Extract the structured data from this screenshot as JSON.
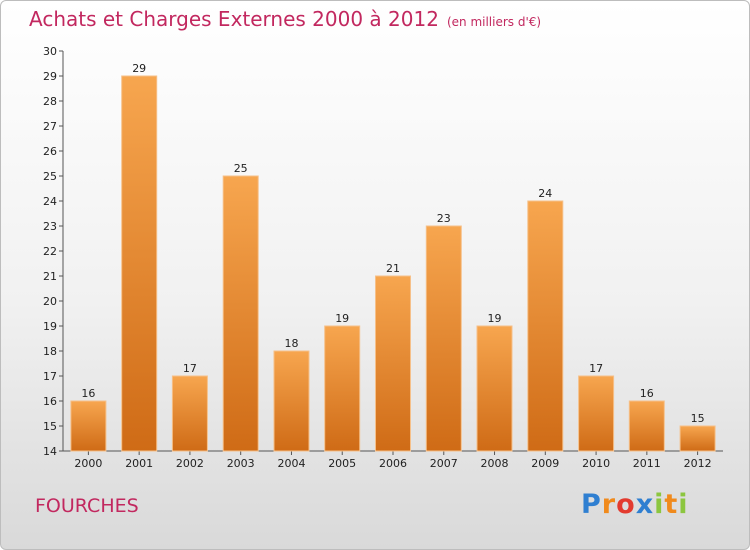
{
  "header": {
    "title": "Achats et Charges Externes 2000 à 2012",
    "unit": "(en milliers d'€)"
  },
  "footer": {
    "town": "FOURCHES",
    "logo_letters": [
      {
        "ch": "P",
        "color": "#2f7fd1"
      },
      {
        "ch": "r",
        "color": "#f08a1c"
      },
      {
        "ch": "o",
        "color": "#e33b2f"
      },
      {
        "ch": "x",
        "color": "#2f7fd1"
      },
      {
        "ch": "i",
        "color": "#8cc63f"
      },
      {
        "ch": "t",
        "color": "#f08a1c"
      },
      {
        "ch": "i",
        "color": "#8cc63f"
      }
    ]
  },
  "colors": {
    "bar_light": "#f7a64f",
    "bar_dark": "#cf6b16",
    "title": "#c2285f"
  },
  "chart_data": {
    "type": "bar",
    "title": "Achats et Charges Externes 2000 à 2012",
    "subtitle": "(en milliers d'€)",
    "categories": [
      "2000",
      "2001",
      "2002",
      "2003",
      "2004",
      "2005",
      "2006",
      "2007",
      "2008",
      "2009",
      "2010",
      "2011",
      "2012"
    ],
    "values": [
      16,
      29,
      17,
      25,
      18,
      19,
      21,
      23,
      19,
      24,
      17,
      16,
      15
    ],
    "ylim": [
      14,
      30
    ],
    "yticks": [
      14,
      15,
      16,
      17,
      18,
      19,
      20,
      21,
      22,
      23,
      24,
      25,
      26,
      27,
      28,
      29,
      30
    ],
    "xlabel": "",
    "ylabel": "",
    "grid": false,
    "legend": "none"
  }
}
